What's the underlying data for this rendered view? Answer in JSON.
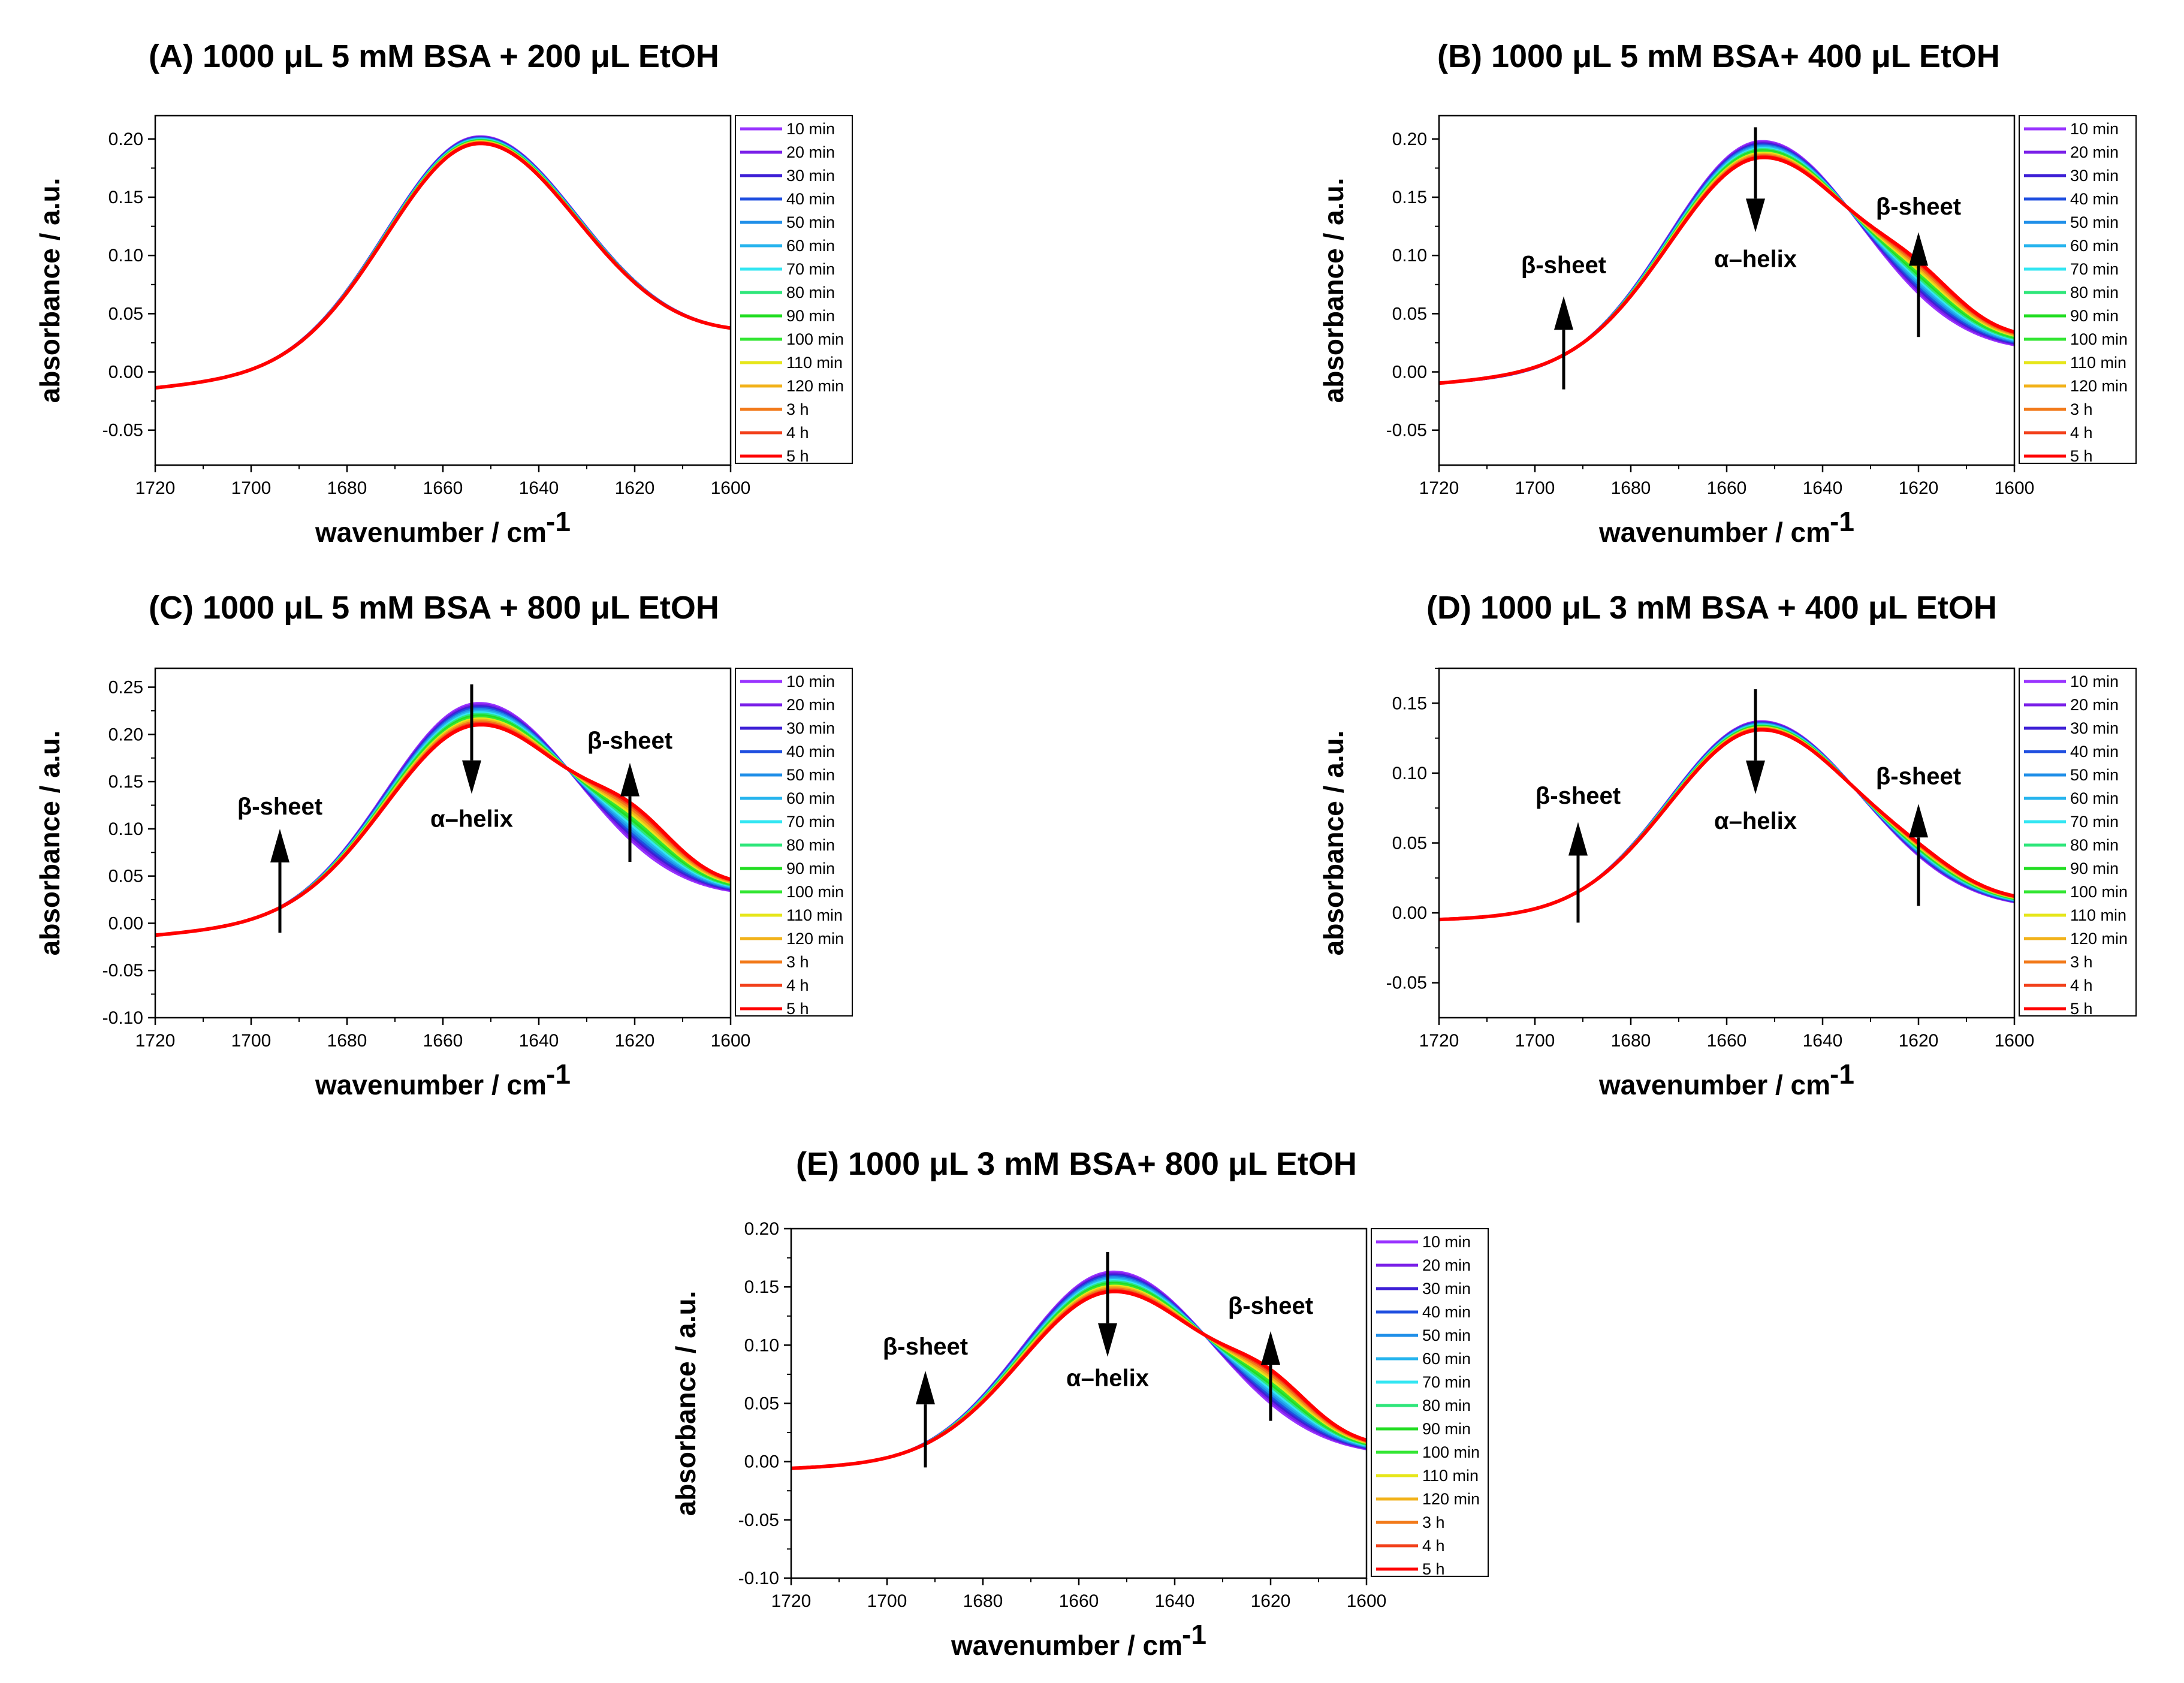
{
  "chart_data": [
    {
      "id": "A",
      "type": "line",
      "title": "(A)  1000 μL 5 mM BSA + 200 μL EtOH",
      "xlabel": "wavenumber / cm",
      "xlabel_sup": "-1",
      "ylabel": "absorbance / a.u.",
      "xlim": [
        1720,
        1600
      ],
      "ylim": [
        -0.08,
        0.22
      ],
      "xticks": [
        "1720",
        "1700",
        "1680",
        "1660",
        "1640",
        "1620",
        "1600"
      ],
      "yticks": [
        "-0.05",
        "0.00",
        "0.05",
        "0.10",
        "0.15",
        "0.20"
      ],
      "ytick_values": [
        -0.05,
        0,
        0.05,
        0.1,
        0.15,
        0.2
      ],
      "legend_position": "right",
      "series_model": {
        "start": -0.014,
        "end_first": 0.03,
        "end_last": 0.03,
        "peak_first": 0.202,
        "peak_last": 0.196,
        "shoulder_first": 0.0,
        "shoulder_last": 0.0,
        "peak_x": 1653
      },
      "annotations": []
    },
    {
      "id": "B",
      "type": "line",
      "title": "(B)  1000 μL 5 mM BSA+ 400 μL EtOH",
      "xlabel": "wavenumber / cm",
      "xlabel_sup": "-1",
      "ylabel": "absorbance / a.u.",
      "xlim": [
        1720,
        1600
      ],
      "ylim": [
        -0.08,
        0.22
      ],
      "xticks": [
        "1720",
        "1700",
        "1680",
        "1660",
        "1640",
        "1620",
        "1600"
      ],
      "yticks": [
        "-0.05",
        "0.00",
        "0.05",
        "0.10",
        "0.15",
        "0.20"
      ],
      "ytick_values": [
        -0.05,
        0,
        0.05,
        0.1,
        0.15,
        0.2
      ],
      "legend_position": "right",
      "series_model": {
        "start": -0.01,
        "end_first": 0.015,
        "end_last": 0.025,
        "peak_first": 0.198,
        "peak_last": 0.184,
        "shoulder_first": 0.0,
        "shoulder_last": 0.025,
        "peak_x": 1653
      },
      "annotations": [
        {
          "text": "β-sheet",
          "x": 1694,
          "y_from": -0.015,
          "y_to": 0.065,
          "text_y": 0.085,
          "text_x": 1694
        },
        {
          "text": "α–helix",
          "x": 1654,
          "y_from": 0.21,
          "y_to": 0.12,
          "text_y": 0.09,
          "text_x": 1654
        },
        {
          "text": "β-sheet",
          "x": 1620,
          "y_from": 0.03,
          "y_to": 0.12,
          "text_y": 0.135,
          "text_x": 1620
        }
      ]
    },
    {
      "id": "C",
      "type": "line",
      "title": "(C)  1000 μL 5 mM BSA + 800 μL EtOH",
      "xlabel": "wavenumber / cm",
      "xlabel_sup": "-1",
      "ylabel": "absorbance / a.u.",
      "xlim": [
        1720,
        1600
      ],
      "ylim": [
        -0.1,
        0.27
      ],
      "xticks": [
        "1720",
        "1700",
        "1680",
        "1660",
        "1640",
        "1620",
        "1600"
      ],
      "yticks": [
        "-0.10",
        "-0.05",
        "0.00",
        "0.05",
        "0.10",
        "0.15",
        "0.20",
        "0.25"
      ],
      "ytick_values": [
        -0.1,
        -0.05,
        0,
        0.05,
        0.1,
        0.15,
        0.2,
        0.25
      ],
      "legend_position": "right",
      "series_model": {
        "start": -0.013,
        "end_first": 0.025,
        "end_last": 0.035,
        "peak_first": 0.233,
        "peak_last": 0.21,
        "shoulder_first": 0.0,
        "shoulder_last": 0.04,
        "peak_x": 1653
      },
      "annotations": [
        {
          "text": "β-sheet",
          "x": 1694,
          "y_from": -0.01,
          "y_to": 0.1,
          "text_y": 0.115,
          "text_x": 1694
        },
        {
          "text": "α–helix",
          "x": 1654,
          "y_from": 0.253,
          "y_to": 0.137,
          "text_y": 0.102,
          "text_x": 1654
        },
        {
          "text": "β-sheet",
          "x": 1621,
          "y_from": 0.065,
          "y_to": 0.17,
          "text_y": 0.185,
          "text_x": 1621
        }
      ]
    },
    {
      "id": "D",
      "type": "line",
      "title": "(D)  1000 μL 3 mM BSA + 400 μL EtOH",
      "xlabel": "wavenumber / cm",
      "xlabel_sup": "-1",
      "ylabel": "absorbance / a.u.",
      "xlim": [
        1720,
        1600
      ],
      "ylim": [
        -0.075,
        0.175
      ],
      "xticks": [
        "1720",
        "1700",
        "1680",
        "1660",
        "1640",
        "1620",
        "1600"
      ],
      "yticks": [
        "-0.05",
        "0.00",
        "0.05",
        "0.10",
        "0.15"
      ],
      "ytick_values": [
        -0.05,
        0,
        0.05,
        0.1,
        0.15
      ],
      "legend_position": "right",
      "series_model": {
        "start": -0.005,
        "end_first": 0.002,
        "end_last": 0.006,
        "peak_first": 0.137,
        "peak_last": 0.131,
        "shoulder_first": 0.0,
        "shoulder_last": 0.008,
        "peak_x": 1653
      },
      "annotations": [
        {
          "text": "β-sheet",
          "x": 1691,
          "y_from": -0.007,
          "y_to": 0.065,
          "text_y": 0.078,
          "text_x": 1691
        },
        {
          "text": "α–helix",
          "x": 1654,
          "y_from": 0.16,
          "y_to": 0.085,
          "text_y": 0.06,
          "text_x": 1654
        },
        {
          "text": "β-sheet",
          "x": 1620,
          "y_from": 0.005,
          "y_to": 0.078,
          "text_y": 0.092,
          "text_x": 1620
        }
      ]
    },
    {
      "id": "E",
      "type": "line",
      "title": "(E)  1000 μL 3 mM BSA+ 800 μL EtOH",
      "xlabel": "wavenumber / cm",
      "xlabel_sup": "-1",
      "ylabel": "absorbance / a.u.",
      "xlim": [
        1720,
        1600
      ],
      "ylim": [
        -0.1,
        0.2
      ],
      "xticks": [
        "1720",
        "1700",
        "1680",
        "1660",
        "1640",
        "1620",
        "1600"
      ],
      "yticks": [
        "-0.10",
        "-0.05",
        "0.00",
        "0.05",
        "0.10",
        "0.15",
        "0.20"
      ],
      "ytick_values": [
        -0.1,
        -0.05,
        0,
        0.05,
        0.1,
        0.15,
        0.2
      ],
      "legend_position": "right",
      "series_model": {
        "start": -0.006,
        "end_first": 0.004,
        "end_last": 0.01,
        "peak_first": 0.163,
        "peak_last": 0.146,
        "shoulder_first": 0.0,
        "shoulder_last": 0.03,
        "peak_x": 1653
      },
      "annotations": [
        {
          "text": "β-sheet",
          "x": 1692,
          "y_from": -0.005,
          "y_to": 0.078,
          "text_y": 0.092,
          "text_x": 1692
        },
        {
          "text": "α–helix",
          "x": 1654,
          "y_from": 0.18,
          "y_to": 0.09,
          "text_y": 0.065,
          "text_x": 1654
        },
        {
          "text": "β-sheet",
          "x": 1620,
          "y_from": 0.035,
          "y_to": 0.112,
          "text_y": 0.127,
          "text_x": 1620
        }
      ]
    }
  ],
  "legend": {
    "labels": [
      "10 min",
      "20 min",
      "30 min",
      "40 min",
      "50 min",
      "60 min",
      "70 min",
      "80 min",
      "90 min",
      "100 min",
      "110 min",
      "120 min",
      "3 h",
      "4 h",
      "5 h"
    ],
    "colors": [
      "#9933FF",
      "#7A1FE8",
      "#3D1FD6",
      "#1F4FE0",
      "#1F8FE8",
      "#26B4EE",
      "#33E6F2",
      "#2EE67A",
      "#22DD22",
      "#33E633",
      "#E6E61A",
      "#F2B21A",
      "#F27A1A",
      "#F2401A",
      "#FF0000"
    ]
  }
}
